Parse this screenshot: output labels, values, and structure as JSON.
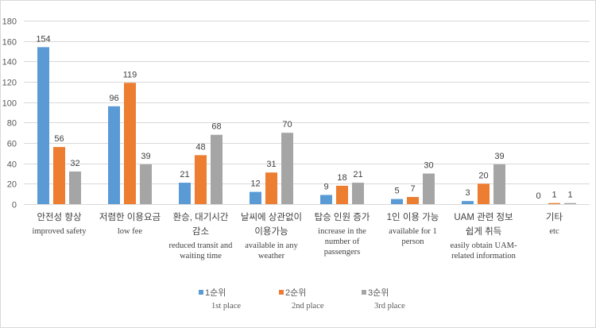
{
  "chart_data": {
    "type": "bar",
    "ylim": [
      0,
      180
    ],
    "yticks": [
      0,
      20,
      40,
      60,
      80,
      100,
      120,
      140,
      160,
      180
    ],
    "grid": true,
    "legend": "bottom",
    "categories": [
      {
        "ko": [
          "안전성 향상"
        ],
        "en": [
          "improved safety"
        ]
      },
      {
        "ko": [
          "저렴한 이용요금"
        ],
        "en": [
          "low fee"
        ]
      },
      {
        "ko": [
          "환승, 대기시간",
          "감소"
        ],
        "en": [
          "reduced transit and",
          "waiting time"
        ]
      },
      {
        "ko": [
          "날씨에 상관없이",
          "이용가능"
        ],
        "en": [
          "available in any",
          "weather"
        ]
      },
      {
        "ko": [
          "탑승 인원 증가"
        ],
        "en": [
          "increase in the",
          "number of",
          "passengers"
        ]
      },
      {
        "ko": [
          "1인 이용 가능"
        ],
        "en": [
          "available for 1",
          "person"
        ]
      },
      {
        "ko": [
          "UAM 관련 정보",
          "쉽게 취득"
        ],
        "en": [
          "easily obtain UAM-",
          "related information"
        ]
      },
      {
        "ko": [
          "기타"
        ],
        "en": [
          "etc"
        ]
      }
    ],
    "series": [
      {
        "name": "1순위",
        "name_en": "1st place",
        "color": "#5B9BD5",
        "values": [
          154,
          96,
          21,
          12,
          9,
          5,
          3,
          0
        ]
      },
      {
        "name": "2순위",
        "name_en": "2nd place",
        "color": "#ED7D31",
        "values": [
          56,
          119,
          48,
          31,
          18,
          7,
          20,
          1
        ]
      },
      {
        "name": "3순위",
        "name_en": "3rd place",
        "color": "#A5A5A5",
        "values": [
          32,
          39,
          68,
          70,
          21,
          30,
          39,
          1
        ]
      }
    ]
  }
}
